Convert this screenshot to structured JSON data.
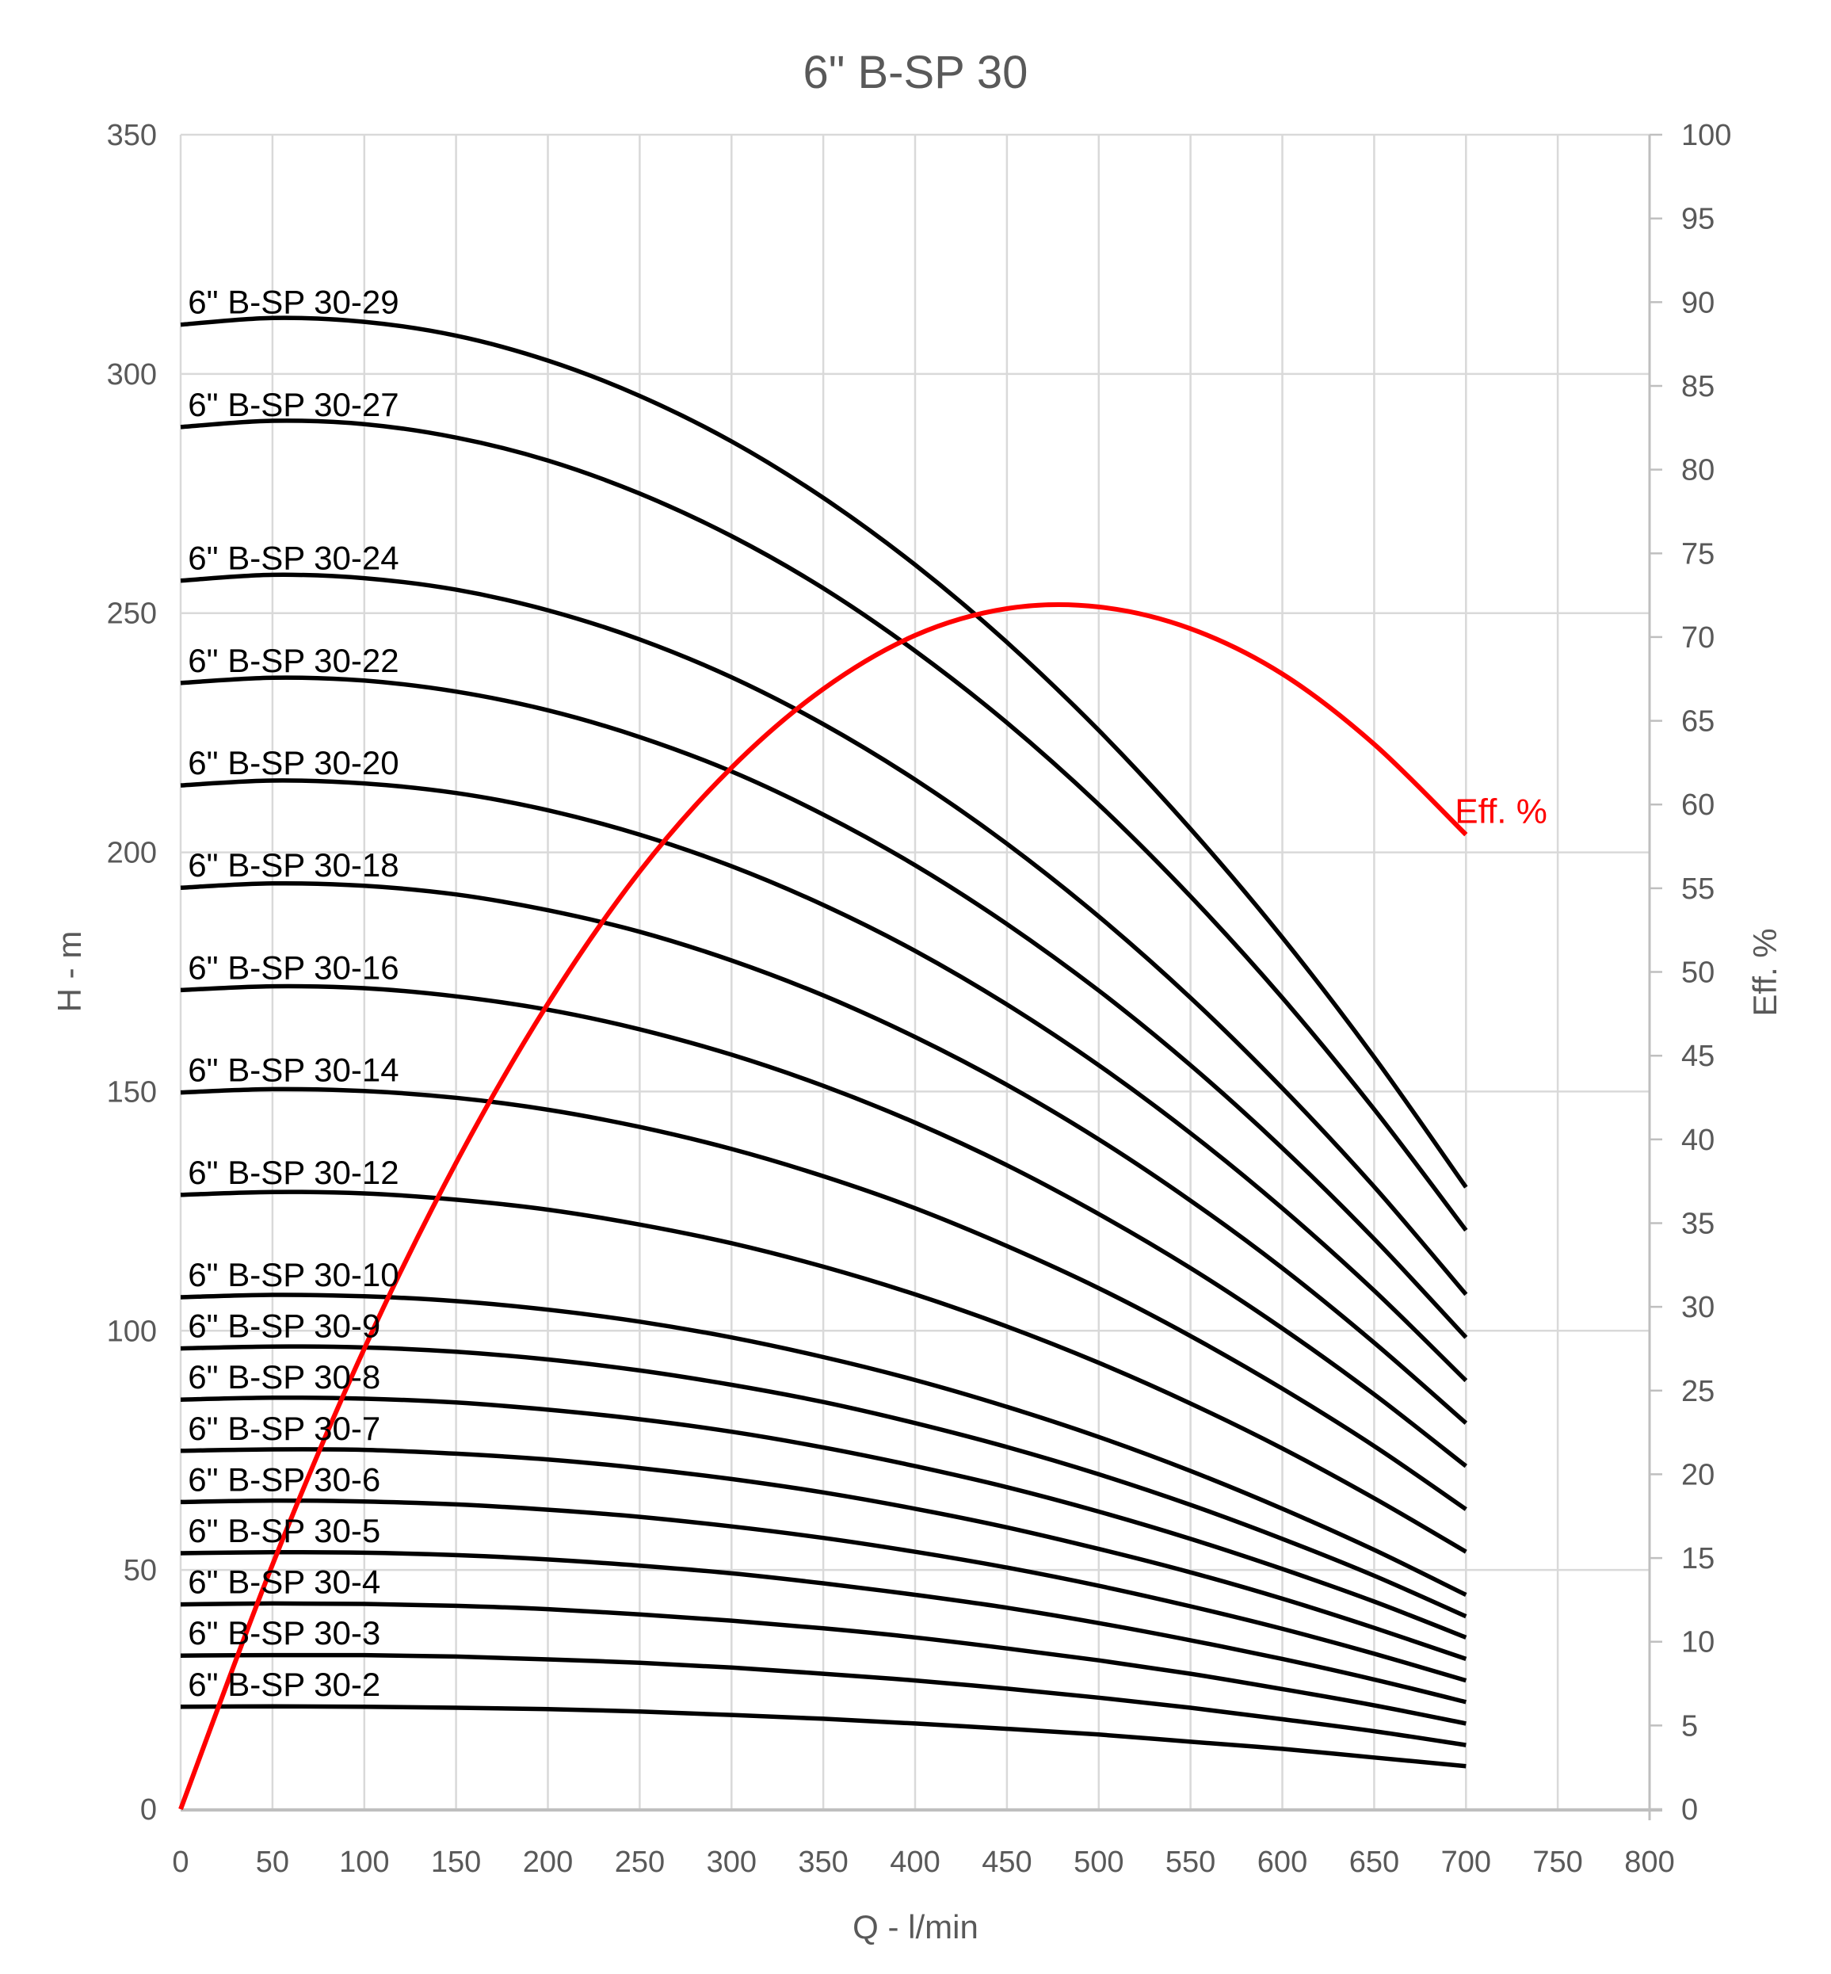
{
  "title": "6\" B-SP 30",
  "colors": {
    "background": "#FFFFFF",
    "text": "#595959",
    "grid": "#D9D9D9",
    "axis_line": "#BFBFBF",
    "pump_curve": "#000000",
    "efficiency_curve": "#FF0000"
  },
  "axes": {
    "x": {
      "label": "Q - l/min",
      "min": 0,
      "max": 800,
      "ticks": [
        0,
        50,
        100,
        150,
        200,
        250,
        300,
        350,
        400,
        450,
        500,
        550,
        600,
        650,
        700,
        750,
        800
      ]
    },
    "y_left": {
      "label": "H - m",
      "min": 0,
      "max": 350,
      "ticks": [
        0,
        50,
        100,
        150,
        200,
        250,
        300,
        350
      ]
    },
    "y_right": {
      "label": "Eff. %",
      "min": 0,
      "max": 100,
      "ticks": [
        0,
        5,
        10,
        15,
        20,
        25,
        30,
        35,
        40,
        45,
        50,
        55,
        60,
        65,
        70,
        75,
        80,
        85,
        90,
        95,
        100
      ]
    }
  },
  "chart_data": {
    "type": "line",
    "title": "6\" B-SP 30",
    "xlabel": "Q - l/min",
    "ylabel_left": "H - m",
    "ylabel_right": "Eff. %",
    "grid": true,
    "legend": "inline-labels",
    "xlim": [
      0,
      800
    ],
    "ylim_left": [
      0,
      350
    ],
    "ylim_right": [
      0,
      100
    ],
    "x": [
      0,
      50,
      100,
      150,
      200,
      250,
      300,
      350,
      400,
      450,
      500,
      550,
      600,
      650,
      700
    ],
    "series": [
      {
        "name": "6\" B-SP 30-29",
        "stages": 29,
        "axis": "left",
        "values": [
          310.3,
          311.7,
          310.9,
          308.0,
          302.8,
          295.4,
          285.9,
          274.1,
          260.1,
          243.9,
          225.5,
          204.9,
          182.2,
          157.2,
          130.0
        ]
      },
      {
        "name": "6\" B-SP 30-27",
        "stages": 27,
        "axis": "left",
        "values": [
          288.9,
          290.2,
          289.5,
          286.7,
          281.9,
          275.0,
          266.1,
          255.2,
          242.1,
          227.1,
          210.0,
          190.8,
          169.6,
          146.3,
          121.0
        ]
      },
      {
        "name": "6\" B-SP 30-24",
        "stages": 24,
        "axis": "left",
        "values": [
          256.8,
          258.0,
          257.3,
          254.9,
          250.6,
          244.5,
          236.6,
          226.8,
          215.2,
          201.8,
          186.6,
          169.6,
          150.7,
          130.1,
          107.6
        ]
      },
      {
        "name": "6\" B-SP 30-22",
        "stages": 22,
        "axis": "left",
        "values": [
          235.4,
          236.5,
          235.9,
          233.6,
          229.7,
          224.1,
          216.9,
          207.9,
          197.3,
          185.0,
          171.1,
          155.5,
          138.2,
          119.2,
          98.6
        ]
      },
      {
        "name": "6\" B-SP 30-20",
        "stages": 20,
        "axis": "left",
        "values": [
          214.0,
          215.0,
          214.4,
          212.4,
          208.8,
          203.7,
          197.1,
          189.0,
          179.4,
          168.2,
          155.5,
          141.3,
          125.6,
          108.4,
          89.6
        ]
      },
      {
        "name": "6\" B-SP 30-18",
        "stages": 18,
        "axis": "left",
        "values": [
          192.6,
          193.5,
          193.0,
          191.2,
          187.9,
          183.4,
          177.4,
          170.1,
          161.4,
          151.4,
          140.0,
          127.2,
          113.1,
          97.5,
          80.7
        ]
      },
      {
        "name": "6\" B-SP 30-16",
        "stages": 16,
        "axis": "left",
        "values": [
          171.2,
          172.0,
          171.6,
          169.9,
          167.1,
          163.0,
          157.7,
          151.2,
          143.5,
          134.6,
          124.4,
          113.1,
          100.5,
          86.7,
          71.7
        ]
      },
      {
        "name": "6\" B-SP 30-14",
        "stages": 14,
        "axis": "left",
        "values": [
          149.8,
          150.5,
          150.1,
          148.7,
          146.2,
          142.6,
          138.0,
          132.3,
          125.6,
          117.7,
          108.9,
          98.9,
          87.9,
          75.9,
          62.7
        ]
      },
      {
        "name": "6\" B-SP 30-12",
        "stages": 12,
        "axis": "left",
        "values": [
          128.4,
          129.0,
          128.7,
          127.4,
          125.3,
          122.2,
          118.3,
          113.4,
          107.6,
          100.9,
          93.3,
          84.8,
          75.4,
          65.0,
          53.8
        ]
      },
      {
        "name": "6\" B-SP 30-10",
        "stages": 10,
        "axis": "left",
        "values": [
          107.0,
          107.5,
          107.2,
          106.2,
          104.4,
          101.9,
          98.6,
          94.5,
          89.7,
          84.1,
          77.8,
          70.7,
          62.8,
          54.2,
          44.8
        ]
      },
      {
        "name": "6\" B-SP 30-9",
        "stages": 9,
        "axis": "left",
        "values": [
          96.3,
          96.7,
          96.5,
          95.6,
          94.0,
          91.7,
          88.7,
          85.1,
          80.7,
          75.7,
          70.0,
          63.6,
          56.5,
          48.8,
          40.3
        ]
      },
      {
        "name": "6\" B-SP 30-8",
        "stages": 8,
        "axis": "left",
        "values": [
          85.6,
          86.0,
          85.8,
          85.0,
          83.5,
          81.5,
          78.9,
          75.6,
          71.7,
          67.3,
          62.2,
          56.5,
          50.2,
          43.4,
          35.9
        ]
      },
      {
        "name": "6\" B-SP 30-7",
        "stages": 7,
        "axis": "left",
        "values": [
          74.9,
          75.2,
          75.1,
          74.3,
          73.1,
          71.3,
          69.0,
          66.2,
          62.8,
          58.9,
          54.4,
          49.5,
          44.0,
          37.9,
          31.4
        ]
      },
      {
        "name": "6\" B-SP 30-6",
        "stages": 6,
        "axis": "left",
        "values": [
          64.2,
          64.5,
          64.3,
          63.7,
          62.6,
          61.1,
          59.1,
          56.7,
          53.8,
          50.5,
          46.7,
          42.4,
          37.7,
          32.5,
          26.9
        ]
      },
      {
        "name": "6\" B-SP 30-5",
        "stages": 5,
        "axis": "left",
        "values": [
          53.5,
          53.7,
          53.6,
          53.1,
          52.2,
          50.9,
          49.3,
          47.2,
          44.8,
          42.1,
          38.9,
          35.3,
          31.4,
          27.1,
          22.4
        ]
      },
      {
        "name": "6\" B-SP 30-4",
        "stages": 4,
        "axis": "left",
        "values": [
          42.8,
          43.0,
          42.9,
          42.5,
          41.8,
          40.7,
          39.4,
          37.8,
          35.9,
          33.6,
          31.1,
          28.3,
          25.1,
          21.7,
          17.9
        ]
      },
      {
        "name": "6\" B-SP 30-3",
        "stages": 3,
        "axis": "left",
        "values": [
          32.1,
          32.2,
          32.2,
          31.9,
          31.3,
          30.6,
          29.6,
          28.3,
          26.9,
          25.2,
          23.3,
          21.2,
          18.8,
          16.3,
          13.4
        ]
      },
      {
        "name": "6\" B-SP 30-2",
        "stages": 2,
        "axis": "left",
        "values": [
          21.4,
          21.5,
          21.4,
          21.2,
          20.9,
          20.4,
          19.7,
          18.9,
          17.9,
          16.8,
          15.6,
          14.1,
          12.6,
          10.8,
          9.0
        ]
      }
    ],
    "efficiency": {
      "name": "Eff. %",
      "axis": "right",
      "values": [
        0,
        14.6,
        27.5,
        38.6,
        48.1,
        56.0,
        62.2,
        66.9,
        70.1,
        71.7,
        71.8,
        70.5,
        67.8,
        63.6,
        58.2
      ]
    },
    "eff_label": {
      "text": "Eff. %",
      "q": 694,
      "eff": 58.9
    }
  }
}
